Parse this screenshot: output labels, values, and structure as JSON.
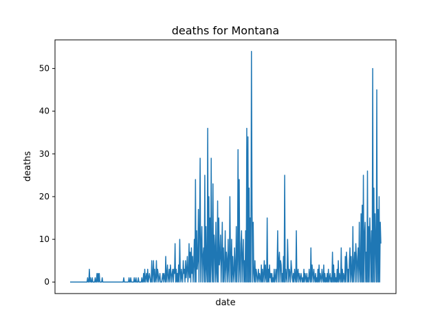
{
  "chart_data": {
    "type": "line",
    "title": "deaths for Montana",
    "xlabel": "date",
    "ylabel": "deaths",
    "ylim": [
      -2.7,
      56.7
    ],
    "yticks": [
      0,
      10,
      20,
      30,
      40,
      50
    ],
    "xticks_visible": false,
    "grid": false,
    "legend": "none",
    "series": [
      {
        "color": "#1f77b4",
        "values": [
          0,
          0,
          0,
          0,
          0,
          0,
          0,
          0,
          0,
          0,
          0,
          0,
          0,
          0,
          0,
          0,
          0,
          0,
          0,
          0,
          0,
          0,
          0,
          0,
          0,
          0,
          0,
          0,
          0,
          0,
          1,
          0,
          0,
          3,
          0,
          1,
          0,
          0,
          1,
          0,
          0,
          0,
          0,
          1,
          0,
          0,
          2,
          0,
          2,
          0,
          2,
          0,
          0,
          0,
          0,
          1,
          0,
          0,
          0,
          0,
          0,
          0,
          0,
          0,
          0,
          0,
          0,
          0,
          0,
          0,
          0,
          0,
          0,
          0,
          0,
          0,
          0,
          0,
          0,
          0,
          0,
          0,
          0,
          0,
          0,
          0,
          0,
          0,
          0,
          0,
          0,
          0,
          1,
          0,
          0,
          0,
          0,
          0,
          0,
          0,
          0,
          1,
          0,
          0,
          1,
          0,
          0,
          0,
          0,
          0,
          1,
          0,
          0,
          1,
          0,
          0,
          0,
          1,
          0,
          0,
          0,
          0,
          0,
          1,
          0,
          0,
          2,
          0,
          3,
          0,
          1,
          2,
          0,
          3,
          0,
          1,
          2,
          1,
          0,
          0,
          5,
          0,
          2,
          5,
          0,
          3,
          0,
          1,
          5,
          0,
          3,
          2,
          0,
          1,
          2,
          0,
          0,
          0,
          1,
          2,
          0,
          2,
          1,
          0,
          6,
          0,
          2,
          4,
          0,
          1,
          3,
          0,
          4,
          2,
          0,
          2,
          3,
          0,
          3,
          2,
          9,
          0,
          3,
          0,
          2,
          0,
          4,
          0,
          10,
          2,
          0,
          3,
          1,
          0,
          5,
          2,
          3,
          0,
          5,
          1,
          3,
          6,
          0,
          2,
          9,
          1,
          7,
          0,
          8,
          2,
          6,
          0,
          4,
          10,
          0,
          24,
          0,
          12,
          3,
          5,
          17,
          0,
          12,
          29,
          0,
          8,
          13,
          0,
          6,
          8,
          0,
          25,
          0,
          13,
          3,
          0,
          36,
          0,
          20,
          0,
          15,
          0,
          29,
          4,
          0,
          23,
          0,
          11,
          8,
          0,
          14,
          2,
          0,
          19,
          0,
          15,
          4,
          6,
          11,
          0,
          6,
          14,
          0,
          8,
          0,
          3,
          12,
          0,
          7,
          5,
          0,
          10,
          3,
          0,
          20,
          6,
          0,
          10,
          0,
          6,
          2,
          0,
          8,
          3,
          0,
          13,
          0,
          5,
          31,
          0,
          24,
          3,
          0,
          9,
          12,
          0,
          6,
          10,
          0,
          5,
          0,
          12,
          0,
          36,
          0,
          34,
          0,
          22,
          0,
          15,
          0,
          54,
          18,
          0,
          14,
          2,
          0,
          5,
          0,
          3,
          2,
          0,
          1,
          3,
          0,
          2,
          1,
          0,
          4,
          0,
          3,
          0,
          2,
          5,
          0,
          4,
          1,
          0,
          15,
          0,
          3,
          0,
          4,
          1,
          2,
          0,
          2,
          0,
          1,
          0,
          3,
          0,
          1,
          3,
          0,
          3,
          12,
          0,
          5,
          7,
          0,
          5,
          4,
          0,
          2,
          0,
          6,
          0,
          25,
          0,
          3,
          1,
          0,
          10,
          4,
          0,
          3,
          2,
          0,
          5,
          3,
          1,
          0,
          2,
          0,
          3,
          1,
          0,
          12,
          0,
          2,
          3,
          0,
          2,
          1,
          0,
          2,
          1,
          0,
          1,
          0,
          3,
          0,
          2,
          1,
          0,
          2,
          0,
          1,
          0,
          3,
          1,
          0,
          8,
          0,
          4,
          2,
          0,
          3,
          1,
          0,
          2,
          0,
          1,
          0,
          3,
          0,
          4,
          0,
          2,
          1,
          0,
          3,
          1,
          0,
          4,
          0,
          2,
          0,
          1,
          0,
          2,
          0,
          3,
          0,
          1,
          2,
          0,
          1,
          0,
          7,
          0,
          4,
          0,
          2,
          0,
          1,
          0,
          3,
          0,
          5,
          0,
          2,
          1,
          0,
          8,
          0,
          3,
          0,
          2,
          1,
          0,
          6,
          0,
          7,
          4,
          0,
          3,
          0,
          5,
          8,
          0,
          6,
          2,
          0,
          13,
          0,
          4,
          7,
          0,
          9,
          6,
          0,
          5,
          8,
          0,
          14,
          3,
          0,
          16,
          0,
          18,
          0,
          25,
          0,
          11,
          14,
          0,
          7,
          0,
          26,
          0,
          13,
          0,
          15,
          9,
          0,
          12,
          0,
          50,
          0,
          22,
          0,
          16,
          8,
          0,
          45,
          0,
          17,
          0,
          20,
          0,
          14,
          9
        ]
      }
    ]
  }
}
